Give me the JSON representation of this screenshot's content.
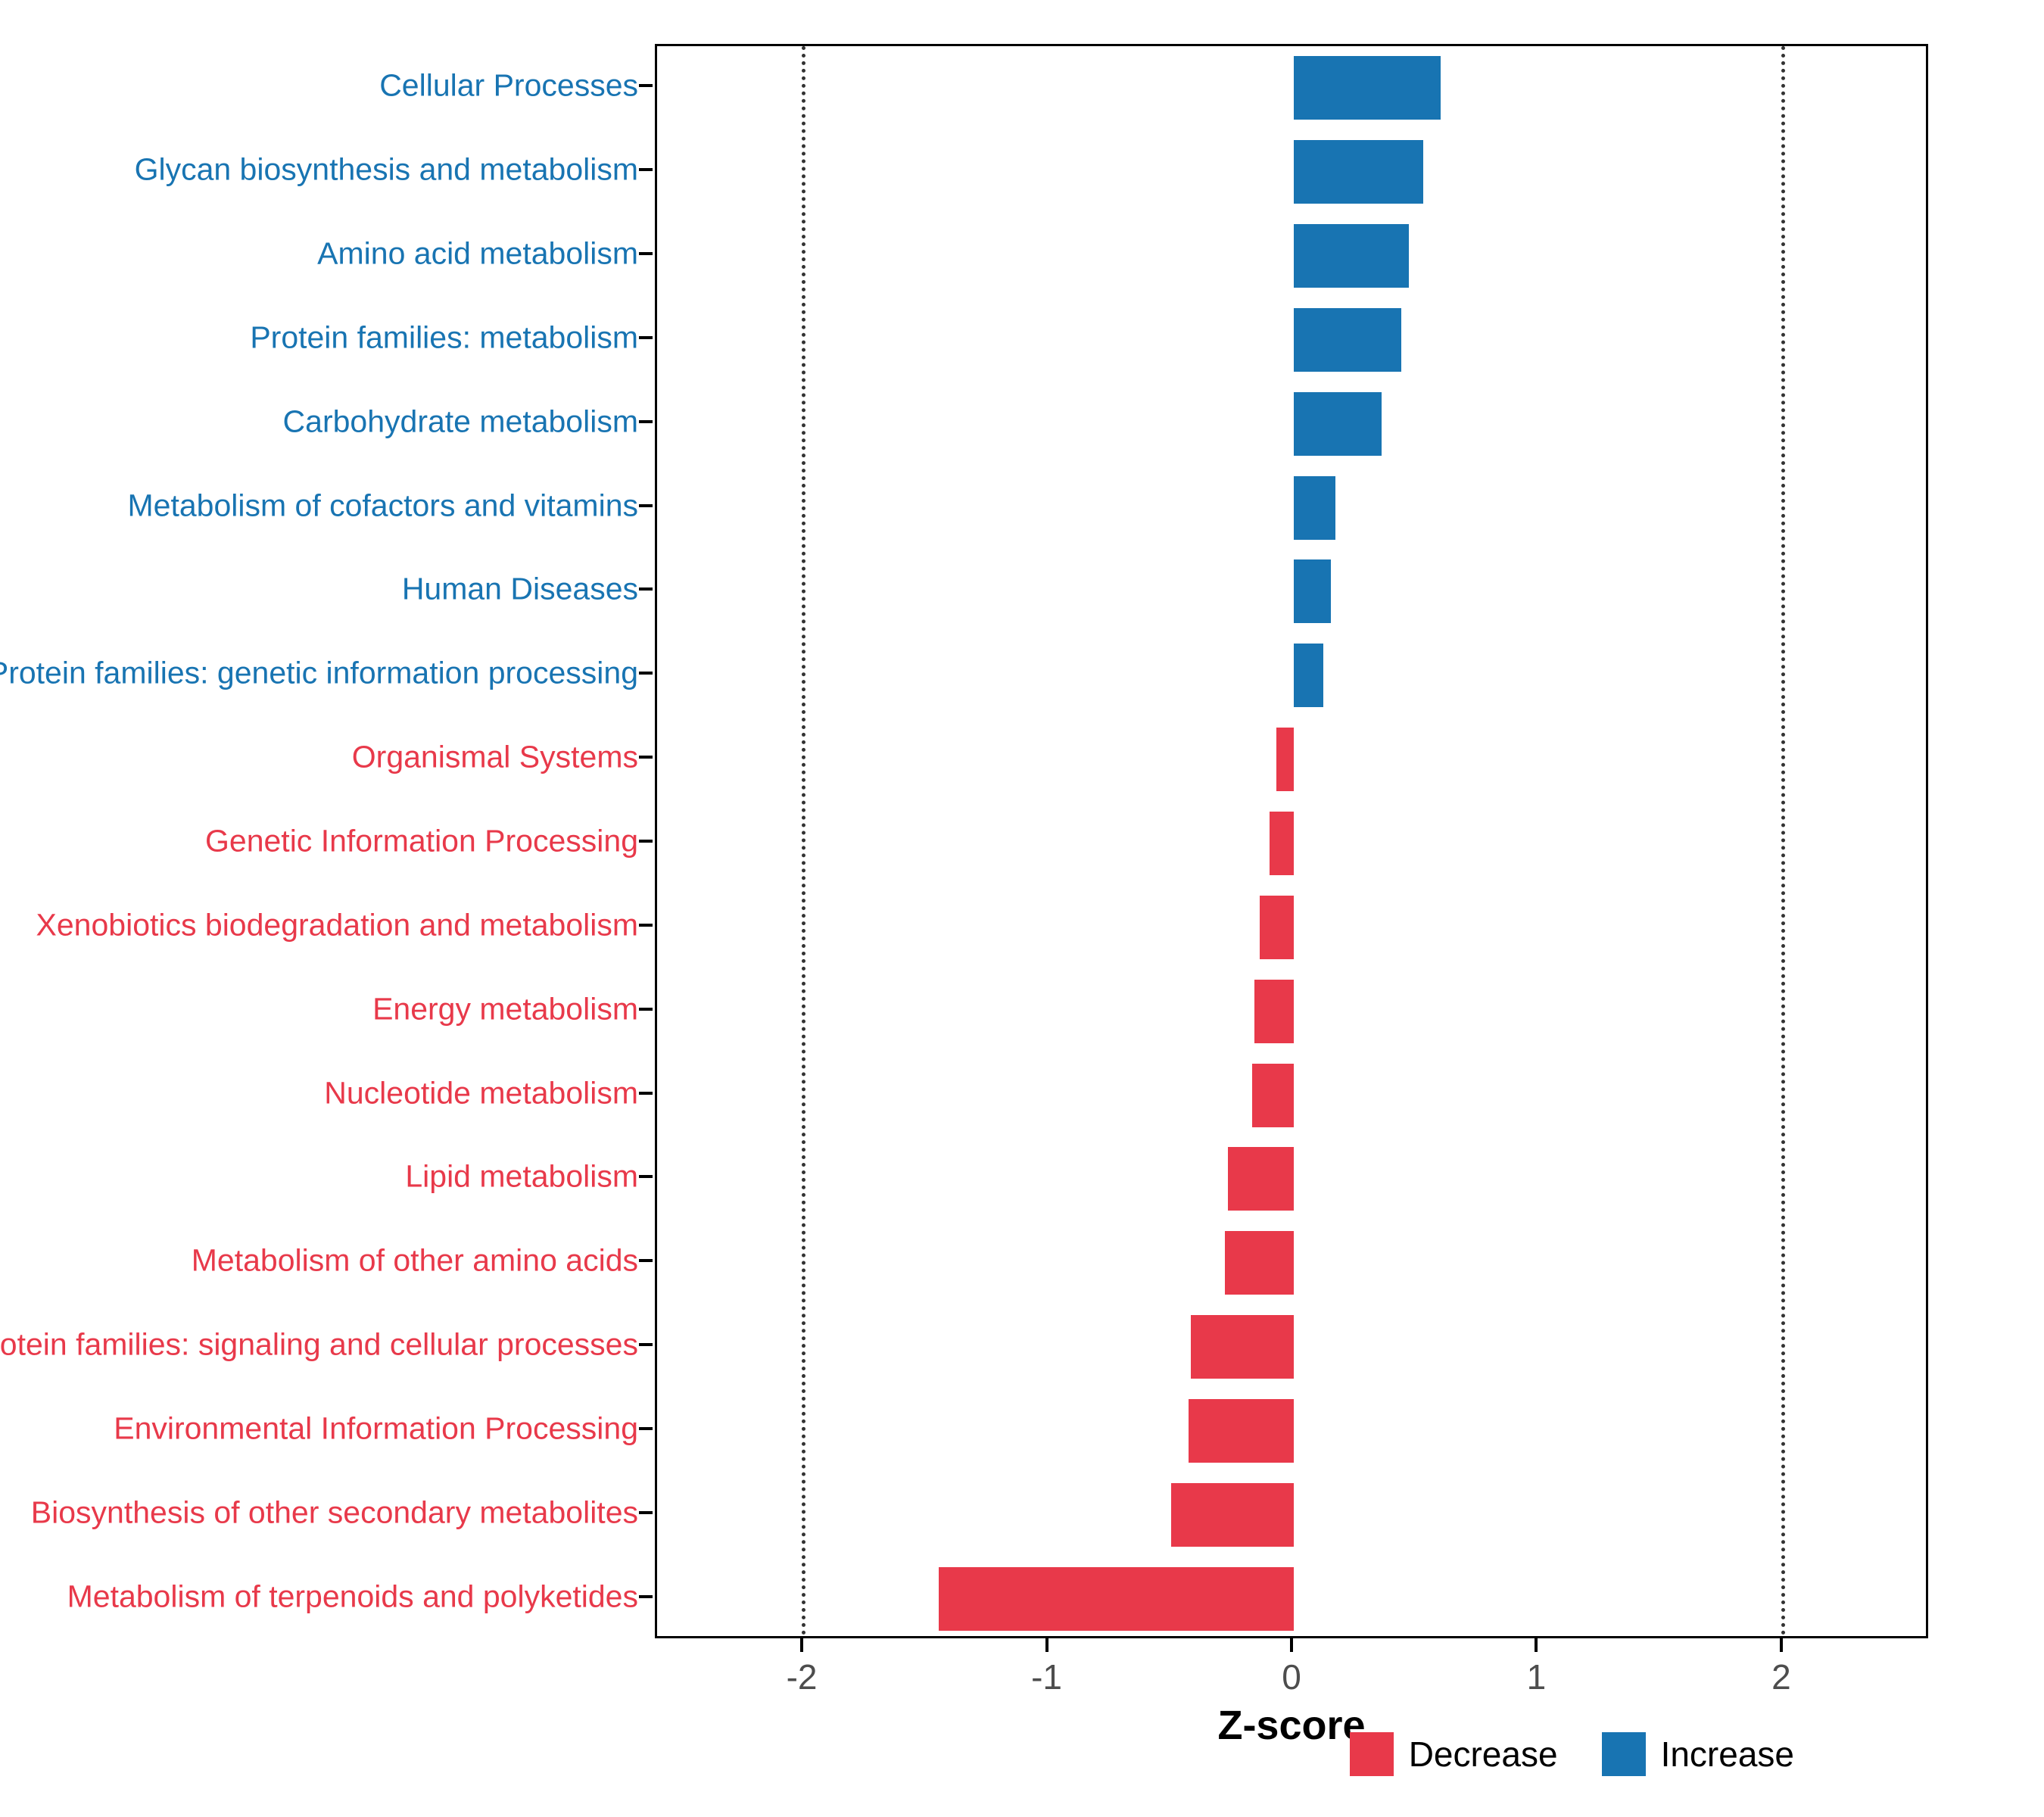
{
  "chart_data": {
    "type": "bar",
    "orientation": "horizontal",
    "title": "",
    "xlabel": "Z-score",
    "ylabel": "",
    "xlim": [
      -2.6,
      2.6
    ],
    "x_ticks": [
      "-2",
      "-1",
      "0",
      "1",
      "2"
    ],
    "x_tick_values": [
      -2,
      -1,
      0,
      1,
      2
    ],
    "dotted_gridlines_at": [
      -2,
      2
    ],
    "grid": "dotted vertical gridlines at -2 and 2 only",
    "legend_position": "bottom-right",
    "legend": [
      {
        "label": "Decrease",
        "color": "#E8394A"
      },
      {
        "label": "Increase",
        "color": "#1874B2"
      }
    ],
    "points": [
      {
        "category": "Cellular Processes",
        "value": 0.6,
        "group": "Increase"
      },
      {
        "category": "Glycan biosynthesis and metabolism",
        "value": 0.53,
        "group": "Increase"
      },
      {
        "category": "Amino acid metabolism",
        "value": 0.47,
        "group": "Increase"
      },
      {
        "category": "Protein families: metabolism",
        "value": 0.44,
        "group": "Increase"
      },
      {
        "category": "Carbohydrate metabolism",
        "value": 0.36,
        "group": "Increase"
      },
      {
        "category": "Metabolism of cofactors and vitamins",
        "value": 0.17,
        "group": "Increase"
      },
      {
        "category": "Human Diseases",
        "value": 0.15,
        "group": "Increase"
      },
      {
        "category": "Protein families: genetic information processing",
        "value": 0.12,
        "group": "Increase"
      },
      {
        "category": "Organismal Systems",
        "value": -0.07,
        "group": "Decrease"
      },
      {
        "category": "Genetic Information Processing",
        "value": -0.1,
        "group": "Decrease"
      },
      {
        "category": "Xenobiotics biodegradation and metabolism",
        "value": -0.14,
        "group": "Decrease"
      },
      {
        "category": "Energy metabolism",
        "value": -0.16,
        "group": "Decrease"
      },
      {
        "category": "Nucleotide metabolism",
        "value": -0.17,
        "group": "Decrease"
      },
      {
        "category": "Lipid metabolism",
        "value": -0.27,
        "group": "Decrease"
      },
      {
        "category": "Metabolism of other amino acids",
        "value": -0.28,
        "group": "Decrease"
      },
      {
        "category": "Protein families: signaling and cellular processes",
        "value": -0.42,
        "group": "Decrease"
      },
      {
        "category": "Environmental Information Processing",
        "value": -0.43,
        "group": "Decrease"
      },
      {
        "category": "Biosynthesis of other secondary metabolites",
        "value": -0.5,
        "group": "Decrease"
      },
      {
        "category": "Metabolism of terpenoids and polyketides",
        "value": -1.45,
        "group": "Decrease"
      }
    ]
  },
  "colors": {
    "increase": "#1874B2",
    "decrease": "#E8394A",
    "axis_tick_text": "#4D4D4D",
    "axis_title_text": "#000000",
    "panel_border": "#000000",
    "gridline": "#333333",
    "background": "#FFFFFF"
  }
}
